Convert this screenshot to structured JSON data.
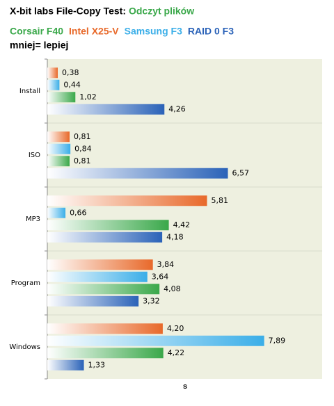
{
  "chart_data": {
    "type": "bar",
    "orientation": "horizontal",
    "title": "X-bit labs File-Copy Test:",
    "subtitle": "Odczyt plików",
    "note": "mniej= lepiej",
    "x_label": "s",
    "categories": [
      "Install",
      "ISO",
      "MP3",
      "Program",
      "Windows"
    ],
    "series": [
      {
        "name": "Corsair F40",
        "color": "#3aa84a",
        "values": [
          1.02,
          0.81,
          4.42,
          4.08,
          4.22
        ],
        "value_labels": [
          "1,02",
          "0,81",
          "4,42",
          "4,08",
          "4,22"
        ]
      },
      {
        "name": "Intel X25-V",
        "color": "#e8692a",
        "values": [
          0.38,
          0.81,
          5.81,
          3.84,
          4.2
        ],
        "value_labels": [
          "0,38",
          "0,81",
          "5,81",
          "3,84",
          "4,20"
        ]
      },
      {
        "name": "Samsung F3",
        "color": "#3aaee8",
        "values": [
          0.44,
          0.84,
          0.66,
          3.64,
          7.89
        ],
        "value_labels": [
          "0,44",
          "0,84",
          "0,66",
          "3,64",
          "7,89"
        ]
      },
      {
        "name": "RAID 0 F3",
        "color": "#2a62b8",
        "values": [
          4.26,
          6.57,
          4.18,
          3.32,
          1.33
        ],
        "value_labels": [
          "4,26",
          "6,57",
          "4,18",
          "3,32",
          "1,33"
        ]
      }
    ],
    "xlim": [
      0,
      10
    ]
  }
}
